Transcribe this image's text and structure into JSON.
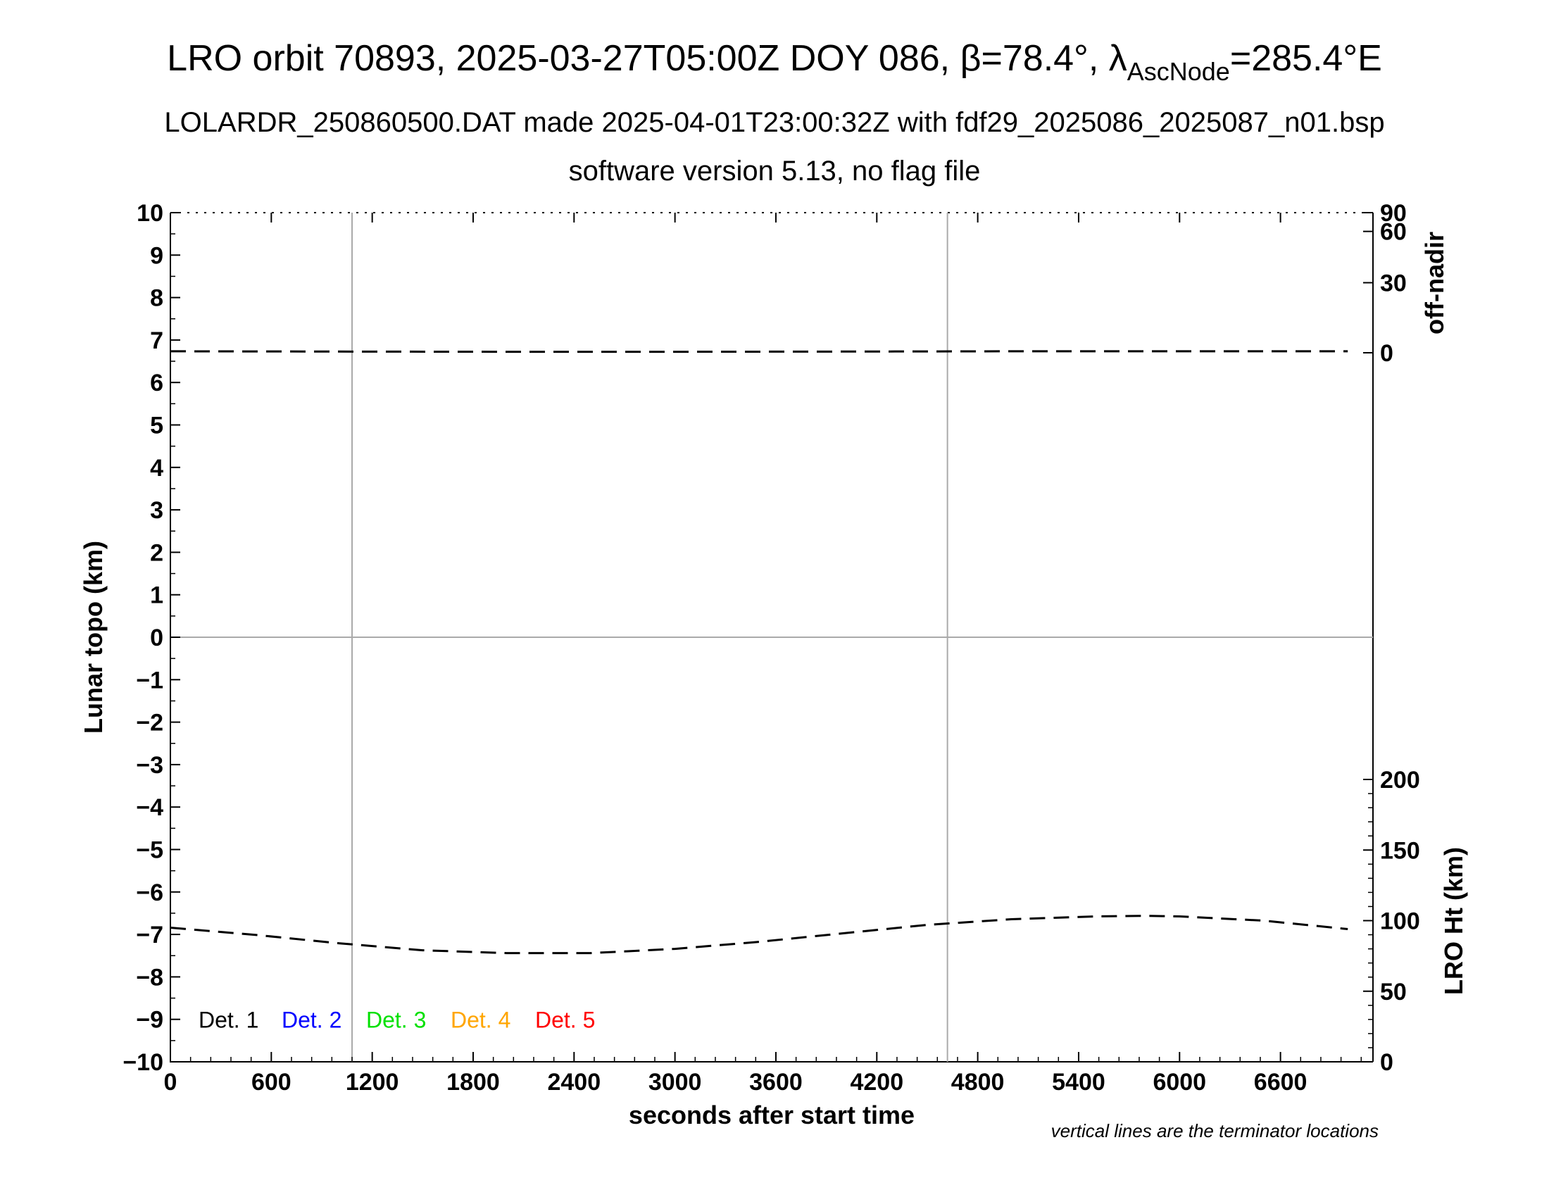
{
  "header": {
    "title_main": "LRO orbit 70893, 2025-03-27T05:00Z DOY 086, β=78.4°, λ",
    "title_sub": "AscNode",
    "title_end": "=285.4°E",
    "subtitle1": "LOLARDR_250860500.DAT made 2025-04-01T23:00:32Z with fdf29_2025086_2025087_n01.bsp",
    "subtitle2": "software version 5.13, no flag file"
  },
  "footnote": "vertical lines are the terminator locations",
  "chart_data": {
    "type": "line",
    "xlabel": "seconds after start time",
    "ylabel_left": "Lunar topo (km)",
    "ylabel_right_top": "off-nadir",
    "ylabel_right_bottom": "LRO Ht (km)",
    "xlim": [
      0,
      7150
    ],
    "ylim_left": [
      -10,
      10
    ],
    "xticks": [
      0,
      600,
      1200,
      1800,
      2400,
      3000,
      3600,
      4200,
      4800,
      5400,
      6000,
      6600
    ],
    "yticks_left": [
      10,
      9,
      8,
      7,
      6,
      5,
      4,
      3,
      2,
      1,
      0,
      -1,
      -2,
      -3,
      -4,
      -5,
      -6,
      -7,
      -8,
      -9,
      -10
    ],
    "yticks_left_labels": [
      "10",
      "9",
      "8",
      "7",
      "6",
      "5",
      "4",
      "3",
      "2",
      "1",
      "0",
      "−1",
      "−2",
      "−3",
      "−4",
      "−5",
      "−6",
      "−7",
      "−8",
      "−9",
      "−10"
    ],
    "right_top_axis": {
      "ticks": [
        90,
        60,
        30,
        0
      ]
    },
    "right_bottom_axis": {
      "range": [
        0,
        200
      ],
      "ticks": [
        200,
        150,
        100,
        50,
        0
      ]
    },
    "terminator_lines_x": [
      1080,
      4620
    ],
    "zero_line_y": 0,
    "legend": [
      {
        "label": "Det. 1",
        "color": "#000000"
      },
      {
        "label": "Det. 2",
        "color": "#0000ff"
      },
      {
        "label": "Det. 3",
        "color": "#00e000"
      },
      {
        "label": "Det. 4",
        "color": "#ffa500"
      },
      {
        "label": "Det. 5",
        "color": "#ff0000"
      }
    ],
    "series": [
      {
        "axis": "off-nadir",
        "style": "dashed",
        "color": "#000000",
        "x": [
          0,
          1000,
          2000,
          3000,
          4000,
          5000,
          6000,
          7000
        ],
        "y": [
          0.6,
          0.5,
          0.4,
          0.4,
          0.5,
          0.6,
          0.6,
          0.6
        ]
      },
      {
        "axis": "LRO Ht (km)",
        "style": "dashed",
        "color": "#000000",
        "x": [
          0,
          500,
          1000,
          1500,
          2000,
          2500,
          3000,
          3500,
          4000,
          4500,
          5000,
          5500,
          5800,
          6000,
          6500,
          7000
        ],
        "y": [
          95,
          90,
          84,
          79,
          77,
          77,
          80,
          85,
          91,
          97,
          101,
          103,
          103.4,
          103,
          100,
          94
        ]
      }
    ]
  }
}
